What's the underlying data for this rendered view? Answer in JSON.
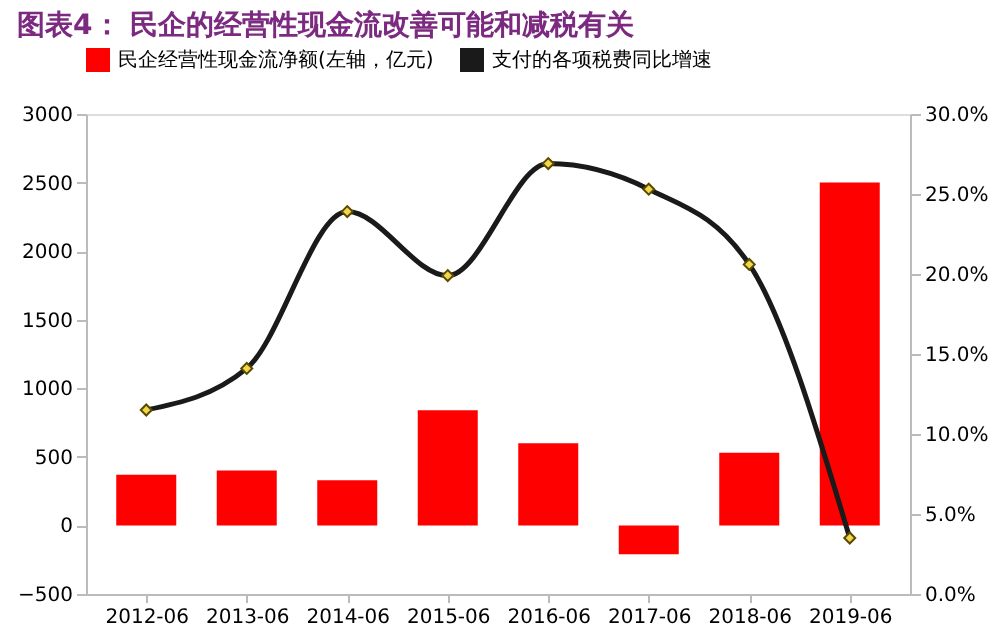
{
  "chart_data": {
    "type": "bar",
    "title": "图表4：  民企的经营性现金流改善可能和减税有关",
    "categories": [
      "2012-06",
      "2013-06",
      "2014-06",
      "2015-06",
      "2016-06",
      "2017-06",
      "2018-06",
      "2019-06"
    ],
    "series": [
      {
        "name": "民企经营性现金流净额(左轴，亿元)",
        "color": "#ff0000",
        "values": [
          370,
          400,
          330,
          840,
          600,
          -210,
          530,
          2500
        ]
      },
      {
        "name": "支付的各项税费同比增速",
        "type": "line",
        "axis": "y2",
        "color": "#1a1a1a",
        "marker": "diamond",
        "values": [
          11.5,
          14.1,
          23.9,
          19.9,
          26.9,
          25.3,
          20.6,
          3.5
        ]
      }
    ],
    "ylim": [
      -500,
      3000
    ],
    "yticks": [
      -500,
      0,
      500,
      1000,
      1500,
      2000,
      2500,
      3000
    ],
    "y2lim": [
      0,
      30
    ],
    "y2ticks": [
      {
        "value": 0,
        "label": "0.0%"
      },
      {
        "value": 5,
        "label": "5.0%"
      },
      {
        "value": 10,
        "label": "10.0%"
      },
      {
        "value": 15,
        "label": "15.0%"
      },
      {
        "value": 20,
        "label": "20.0%"
      },
      {
        "value": 25,
        "label": "25.0%"
      },
      {
        "value": 30,
        "label": "30.0%"
      }
    ],
    "legend": "top",
    "grid": false
  }
}
